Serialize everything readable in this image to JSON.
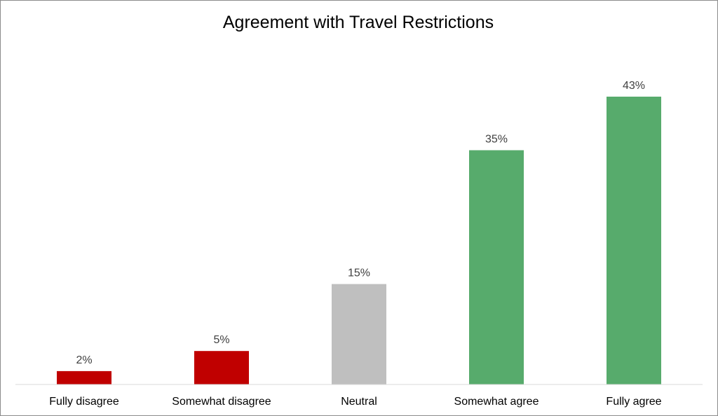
{
  "chart_data": {
    "type": "bar",
    "title": "Agreement with Travel Restrictions",
    "xlabel": "",
    "ylabel": "",
    "categories": [
      "Fully disagree",
      "Somewhat disagree",
      "Neutral",
      "Somewhat agree",
      "Fully agree"
    ],
    "values": [
      2,
      5,
      15,
      35,
      43
    ],
    "value_labels": [
      "2%",
      "5%",
      "15%",
      "35%",
      "43%"
    ],
    "bar_colors": [
      "#c00000",
      "#c00000",
      "#bfbfbf",
      "#57ab6c",
      "#57ab6c"
    ],
    "ylim": [
      0,
      43
    ],
    "grid": false,
    "legend": "none"
  }
}
